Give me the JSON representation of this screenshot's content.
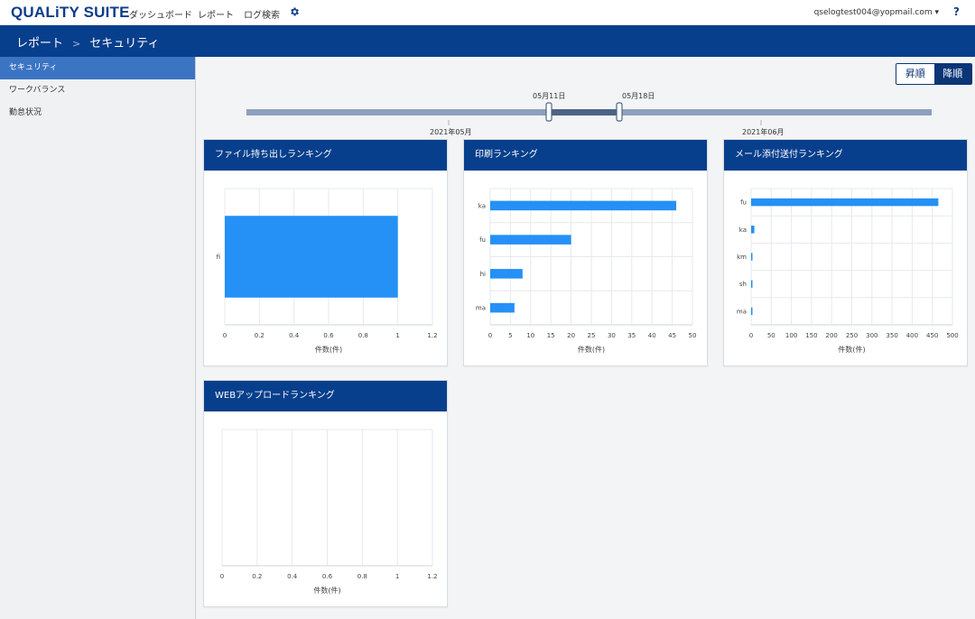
{
  "app": {
    "logo": "QUALiTY SUITE"
  },
  "nav": [
    "ダッシュボード",
    "レポート",
    "ログ検索"
  ],
  "user": {
    "email": "qselogtest004@yopmail.com ▾"
  },
  "help": "?",
  "breadcrumb": {
    "parent": "レポート",
    "separator": ">",
    "current": "セキュリティ"
  },
  "sidebar": {
    "items": [
      {
        "label": "セキュリティ",
        "active": true
      },
      {
        "label": "ワークバランス",
        "active": false
      },
      {
        "label": "勤怠状況",
        "active": false
      }
    ]
  },
  "sort": {
    "asc": "昇順",
    "desc": "降順",
    "selected": "desc"
  },
  "slider": {
    "handle_start": "05月11日",
    "handle_end": "05月18日",
    "month_labels": [
      "2021年05月",
      "2021年06月"
    ]
  },
  "colors": {
    "header": "#083f8c",
    "bar": "#2590f5",
    "accent": "#0a3577"
  },
  "charts": [
    {
      "title": "ファイル持ち出しランキング",
      "xlabel": "件数(件)"
    },
    {
      "title": "印刷ランキング",
      "xlabel": "件数(件)"
    },
    {
      "title": "メール添付送付ランキング",
      "xlabel": "件数(件)"
    },
    {
      "title": "WEBアップロードランキング",
      "xlabel": "件数(件)"
    }
  ],
  "chart_data": [
    {
      "type": "bar",
      "orientation": "horizontal",
      "categories": [
        "fi"
      ],
      "values": [
        1
      ],
      "xlim": [
        0,
        1.2
      ],
      "xticks": [
        "0",
        "0.2",
        "0.4",
        "0.6",
        "0.8",
        "1",
        "1.2"
      ],
      "xlabel": "件数(件)",
      "grid": true
    },
    {
      "type": "bar",
      "orientation": "horizontal",
      "categories": [
        "ka",
        "fu",
        "hi",
        "ma"
      ],
      "values": [
        46,
        20,
        8,
        6
      ],
      "xlim": [
        0,
        50
      ],
      "xticks": [
        "0",
        "5",
        "10",
        "15",
        "20",
        "25",
        "30",
        "35",
        "40",
        "45",
        "50"
      ],
      "xlabel": "件数(件)",
      "grid": true
    },
    {
      "type": "bar",
      "orientation": "horizontal",
      "categories": [
        "fu",
        "ka",
        "km",
        "sh",
        "ma"
      ],
      "values": [
        465,
        8,
        3,
        3,
        2
      ],
      "xlim": [
        0,
        500
      ],
      "xticks": [
        "0",
        "50",
        "100",
        "150",
        "200",
        "250",
        "300",
        "350",
        "400",
        "450",
        "500"
      ],
      "xlabel": "件数(件)",
      "grid": true
    },
    {
      "type": "bar",
      "orientation": "horizontal",
      "categories": [],
      "values": [],
      "xlim": [
        0,
        1.2
      ],
      "xticks": [
        "0",
        "0.2",
        "0.4",
        "0.6",
        "0.8",
        "1",
        "1.2"
      ],
      "xlabel": "件数(件)",
      "grid": true
    }
  ]
}
